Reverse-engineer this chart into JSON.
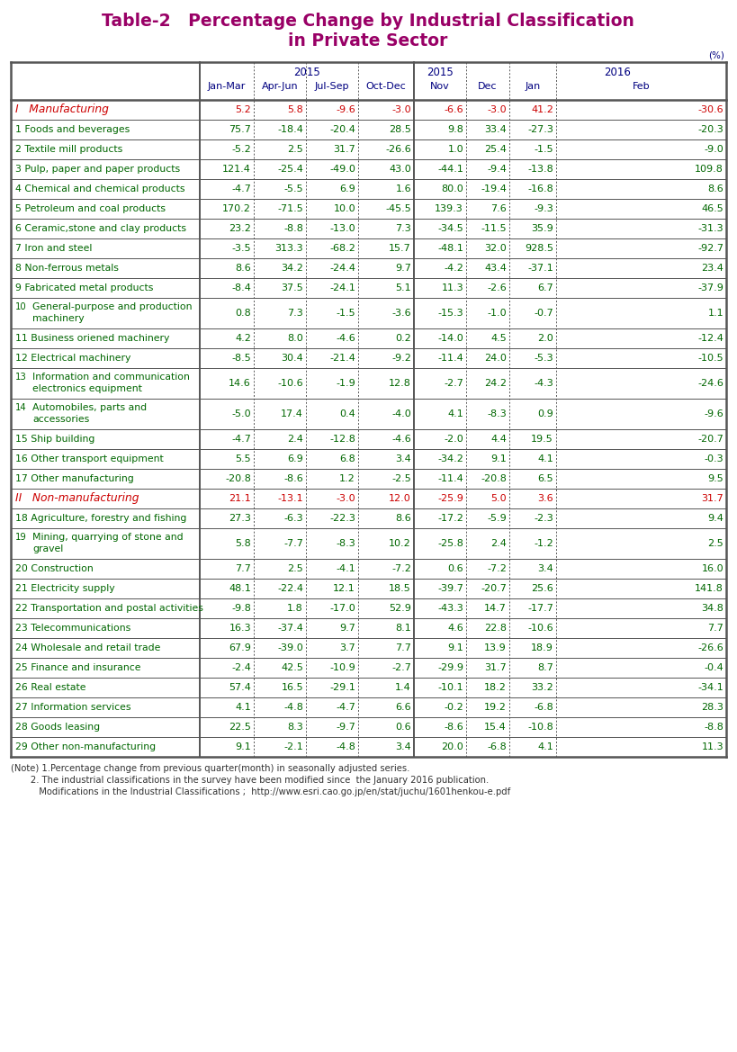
{
  "title_line1": "Table-2   Percentage Change by Industrial Classification",
  "title_line2": "in Private Sector",
  "title_color": "#990066",
  "rows": [
    {
      "label": "I   Manufacturing",
      "num": "",
      "label_rest": "I   Manufacturing",
      "values": [
        "5.2",
        "5.8",
        "-9.6",
        "-3.0",
        "-6.6",
        "-3.0",
        "41.2",
        "-30.6"
      ],
      "label_color": "#cc0000",
      "value_color": "#cc0000",
      "is_section": true,
      "multiline": false
    },
    {
      "label": "1 Foods and beverages",
      "num": "1",
      "label_rest": "Foods and beverages",
      "values": [
        "75.7",
        "-18.4",
        "-20.4",
        "28.5",
        "9.8",
        "33.4",
        "-27.3",
        "-20.3"
      ],
      "label_color": "#006600",
      "value_color": "#006600",
      "is_section": false,
      "multiline": false
    },
    {
      "label": "2 Textile mill products",
      "num": "2",
      "label_rest": "Textile mill products",
      "values": [
        "-5.2",
        "2.5",
        "31.7",
        "-26.6",
        "1.0",
        "25.4",
        "-1.5",
        "-9.0"
      ],
      "label_color": "#006600",
      "value_color": "#006600",
      "is_section": false,
      "multiline": false
    },
    {
      "label": "3 Pulp, paper and paper products",
      "num": "3",
      "label_rest": "Pulp, paper and paper products",
      "values": [
        "121.4",
        "-25.4",
        "-49.0",
        "43.0",
        "-44.1",
        "-9.4",
        "-13.8",
        "109.8"
      ],
      "label_color": "#006600",
      "value_color": "#006600",
      "is_section": false,
      "multiline": false
    },
    {
      "label": "4 Chemical and chemical products",
      "num": "4",
      "label_rest": "Chemical and chemical products",
      "values": [
        "-4.7",
        "-5.5",
        "6.9",
        "1.6",
        "80.0",
        "-19.4",
        "-16.8",
        "8.6"
      ],
      "label_color": "#006600",
      "value_color": "#006600",
      "is_section": false,
      "multiline": false
    },
    {
      "label": "5 Petroleum and coal products",
      "num": "5",
      "label_rest": "Petroleum and coal products",
      "values": [
        "170.2",
        "-71.5",
        "10.0",
        "-45.5",
        "139.3",
        "7.6",
        "-9.3",
        "46.5"
      ],
      "label_color": "#006600",
      "value_color": "#006600",
      "is_section": false,
      "multiline": false
    },
    {
      "label": "6 Ceramic,stone and clay products",
      "num": "6",
      "label_rest": "Ceramic,stone and clay products",
      "values": [
        "23.2",
        "-8.8",
        "-13.0",
        "7.3",
        "-34.5",
        "-11.5",
        "35.9",
        "-31.3"
      ],
      "label_color": "#006600",
      "value_color": "#006600",
      "is_section": false,
      "multiline": false
    },
    {
      "label": "7 Iron and steel",
      "num": "7",
      "label_rest": "Iron and steel",
      "values": [
        "-3.5",
        "313.3",
        "-68.2",
        "15.7",
        "-48.1",
        "32.0",
        "928.5",
        "-92.7"
      ],
      "label_color": "#006600",
      "value_color": "#006600",
      "is_section": false,
      "multiline": false
    },
    {
      "label": "8 Non-ferrous metals",
      "num": "8",
      "label_rest": "Non-ferrous metals",
      "values": [
        "8.6",
        "34.2",
        "-24.4",
        "9.7",
        "-4.2",
        "43.4",
        "-37.1",
        "23.4"
      ],
      "label_color": "#006600",
      "value_color": "#006600",
      "is_section": false,
      "multiline": false
    },
    {
      "label": "9 Fabricated metal products",
      "num": "9",
      "label_rest": "Fabricated metal products",
      "values": [
        "-8.4",
        "37.5",
        "-24.1",
        "5.1",
        "11.3",
        "-2.6",
        "6.7",
        "-37.9"
      ],
      "label_color": "#006600",
      "value_color": "#006600",
      "is_section": false,
      "multiline": false
    },
    {
      "label": "10 General-purpose and production machinery",
      "num": "10",
      "label_rest": "General-purpose and production",
      "label_rest2": "machinery",
      "values": [
        "0.8",
        "7.3",
        "-1.5",
        "-3.6",
        "-15.3",
        "-1.0",
        "-0.7",
        "1.1"
      ],
      "label_color": "#006600",
      "value_color": "#006600",
      "is_section": false,
      "multiline": true
    },
    {
      "label": "11 Business oriened machinery",
      "num": "11",
      "label_rest": "Business oriened machinery",
      "values": [
        "4.2",
        "8.0",
        "-4.6",
        "0.2",
        "-14.0",
        "4.5",
        "2.0",
        "-12.4"
      ],
      "label_color": "#006600",
      "value_color": "#006600",
      "is_section": false,
      "multiline": false
    },
    {
      "label": "12 Electrical machinery",
      "num": "12",
      "label_rest": "Electrical machinery",
      "values": [
        "-8.5",
        "30.4",
        "-21.4",
        "-9.2",
        "-11.4",
        "24.0",
        "-5.3",
        "-10.5"
      ],
      "label_color": "#006600",
      "value_color": "#006600",
      "is_section": false,
      "multiline": false
    },
    {
      "label": "13 Information and communication electronics equipment",
      "num": "13",
      "label_rest": "Information and communication",
      "label_rest2": "electronics equipment",
      "values": [
        "14.6",
        "-10.6",
        "-1.9",
        "12.8",
        "-2.7",
        "24.2",
        "-4.3",
        "-24.6"
      ],
      "label_color": "#006600",
      "value_color": "#006600",
      "is_section": false,
      "multiline": true
    },
    {
      "label": "14 Automobiles, parts and accessories",
      "num": "14",
      "label_rest": "Automobiles, parts and",
      "label_rest2": "accessories",
      "values": [
        "-5.0",
        "17.4",
        "0.4",
        "-4.0",
        "4.1",
        "-8.3",
        "0.9",
        "-9.6"
      ],
      "label_color": "#006600",
      "value_color": "#006600",
      "is_section": false,
      "multiline": true
    },
    {
      "label": "15 Ship building",
      "num": "15",
      "label_rest": "Ship building",
      "values": [
        "-4.7",
        "2.4",
        "-12.8",
        "-4.6",
        "-2.0",
        "4.4",
        "19.5",
        "-20.7"
      ],
      "label_color": "#006600",
      "value_color": "#006600",
      "is_section": false,
      "multiline": false
    },
    {
      "label": "16 Other transport equipment",
      "num": "16",
      "label_rest": "Other transport equipment",
      "values": [
        "5.5",
        "6.9",
        "6.8",
        "3.4",
        "-34.2",
        "9.1",
        "4.1",
        "-0.3"
      ],
      "label_color": "#006600",
      "value_color": "#006600",
      "is_section": false,
      "multiline": false
    },
    {
      "label": "17 Other manufacturing",
      "num": "17",
      "label_rest": "Other manufacturing",
      "values": [
        "-20.8",
        "-8.6",
        "1.2",
        "-2.5",
        "-11.4",
        "-20.8",
        "6.5",
        "9.5"
      ],
      "label_color": "#006600",
      "value_color": "#006600",
      "is_section": false,
      "multiline": false
    },
    {
      "label": "II   Non-manufacturing",
      "num": "",
      "label_rest": "II   Non-manufacturing",
      "values": [
        "21.1",
        "-13.1",
        "-3.0",
        "12.0",
        "-25.9",
        "5.0",
        "3.6",
        "31.7"
      ],
      "label_color": "#cc0000",
      "value_color": "#cc0000",
      "is_section": true,
      "multiline": false
    },
    {
      "label": "18 Agriculture, forestry and fishing",
      "num": "18",
      "label_rest": "Agriculture, forestry and fishing",
      "values": [
        "27.3",
        "-6.3",
        "-22.3",
        "8.6",
        "-17.2",
        "-5.9",
        "-2.3",
        "9.4"
      ],
      "label_color": "#006600",
      "value_color": "#006600",
      "is_section": false,
      "multiline": false
    },
    {
      "label": "19 Mining, quarrying of stone and gravel",
      "num": "19",
      "label_rest": "Mining, quarrying of stone and",
      "label_rest2": "gravel",
      "values": [
        "5.8",
        "-7.7",
        "-8.3",
        "10.2",
        "-25.8",
        "2.4",
        "-1.2",
        "2.5"
      ],
      "label_color": "#006600",
      "value_color": "#006600",
      "is_section": false,
      "multiline": true
    },
    {
      "label": "20 Construction",
      "num": "20",
      "label_rest": "Construction",
      "values": [
        "7.7",
        "2.5",
        "-4.1",
        "-7.2",
        "0.6",
        "-7.2",
        "3.4",
        "16.0"
      ],
      "label_color": "#006600",
      "value_color": "#006600",
      "is_section": false,
      "multiline": false
    },
    {
      "label": "21 Electricity supply",
      "num": "21",
      "label_rest": "Electricity supply",
      "values": [
        "48.1",
        "-22.4",
        "12.1",
        "18.5",
        "-39.7",
        "-20.7",
        "25.6",
        "141.8"
      ],
      "label_color": "#006600",
      "value_color": "#006600",
      "is_section": false,
      "multiline": false
    },
    {
      "label": "22 Transportation and postal activities",
      "num": "22",
      "label_rest": "Transportation and postal activities",
      "values": [
        "-9.8",
        "1.8",
        "-17.0",
        "52.9",
        "-43.3",
        "14.7",
        "-17.7",
        "34.8"
      ],
      "label_color": "#006600",
      "value_color": "#006600",
      "is_section": false,
      "multiline": false
    },
    {
      "label": "23 Telecommunications",
      "num": "23",
      "label_rest": "Telecommunications",
      "values": [
        "16.3",
        "-37.4",
        "9.7",
        "8.1",
        "4.6",
        "22.8",
        "-10.6",
        "7.7"
      ],
      "label_color": "#006600",
      "value_color": "#006600",
      "is_section": false,
      "multiline": false
    },
    {
      "label": "24 Wholesale and retail trade",
      "num": "24",
      "label_rest": "Wholesale and retail trade",
      "values": [
        "67.9",
        "-39.0",
        "3.7",
        "7.7",
        "9.1",
        "13.9",
        "18.9",
        "-26.6"
      ],
      "label_color": "#006600",
      "value_color": "#006600",
      "is_section": false,
      "multiline": false
    },
    {
      "label": "25 Finance and insurance",
      "num": "25",
      "label_rest": "Finance and insurance",
      "values": [
        "-2.4",
        "42.5",
        "-10.9",
        "-2.7",
        "-29.9",
        "31.7",
        "8.7",
        "-0.4"
      ],
      "label_color": "#006600",
      "value_color": "#006600",
      "is_section": false,
      "multiline": false
    },
    {
      "label": "26 Real estate",
      "num": "26",
      "label_rest": "Real estate",
      "values": [
        "57.4",
        "16.5",
        "-29.1",
        "1.4",
        "-10.1",
        "18.2",
        "33.2",
        "-34.1"
      ],
      "label_color": "#006600",
      "value_color": "#006600",
      "is_section": false,
      "multiline": false
    },
    {
      "label": "27 Information services",
      "num": "27",
      "label_rest": "Information services",
      "values": [
        "4.1",
        "-4.8",
        "-4.7",
        "6.6",
        "-0.2",
        "19.2",
        "-6.8",
        "28.3"
      ],
      "label_color": "#006600",
      "value_color": "#006600",
      "is_section": false,
      "multiline": false
    },
    {
      "label": "28 Goods leasing",
      "num": "28",
      "label_rest": "Goods leasing",
      "values": [
        "22.5",
        "8.3",
        "-9.7",
        "0.6",
        "-8.6",
        "15.4",
        "-10.8",
        "-8.8"
      ],
      "label_color": "#006600",
      "value_color": "#006600",
      "is_section": false,
      "multiline": false
    },
    {
      "label": "29 Other non-manufacturing",
      "num": "29",
      "label_rest": "Other non-manufacturing",
      "values": [
        "9.1",
        "-2.1",
        "-4.8",
        "3.4",
        "20.0",
        "-6.8",
        "4.1",
        "11.3"
      ],
      "label_color": "#006600",
      "value_color": "#006600",
      "is_section": false,
      "multiline": false
    }
  ],
  "note1": "(Note) 1.Percentage change from previous quarter(month) in seasonally adjusted series.",
  "note2": "       2. The industrial classifications in the survey have been modified since  the January 2016 publication.",
  "note3": "          Modifications in the Industrial Classifications ;  http://www.esri.cao.go.jp/en/stat/juchu/1601henkou-e.pdf",
  "note_color": "#333333",
  "background_color": "#ffffff",
  "header_color": "#000080",
  "border_color": "#555555",
  "percent_label": "(%)"
}
